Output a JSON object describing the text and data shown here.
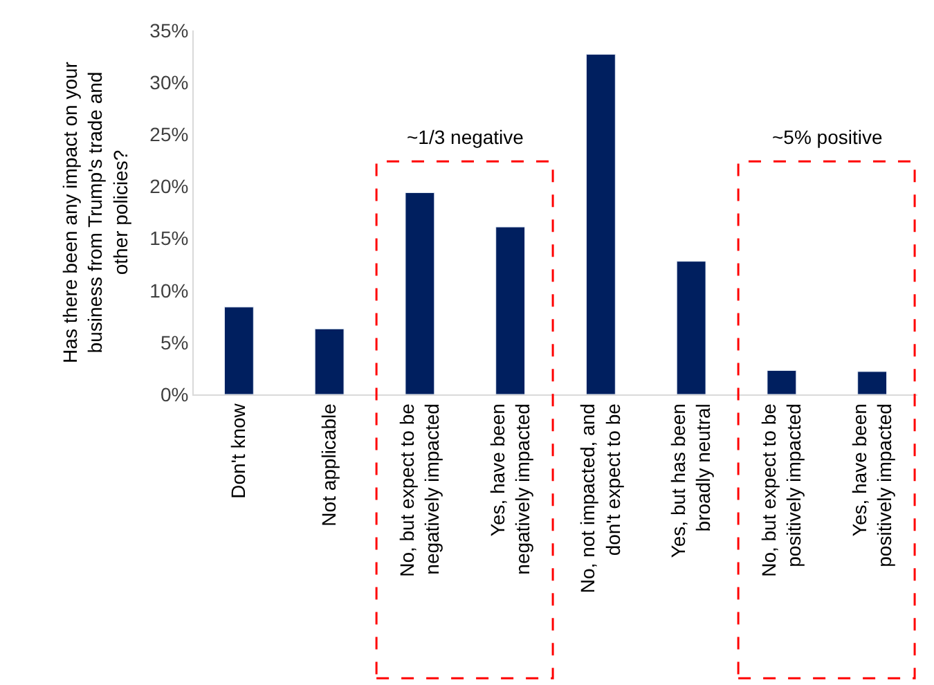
{
  "chart_data": {
    "type": "bar",
    "ylabel": "Has there been any impact on your business from Trump's trade and other policies?",
    "categories": [
      "Don't know",
      "Not applicable",
      "No, but expect to be negatively impacted",
      "Yes, have been negatively impacted",
      "No, not impacted, and don't expect to be",
      "Yes, but has been broadly neutral",
      "No, but expect to be positively impacted",
      "Yes, have been positively impacted"
    ],
    "values": [
      8.4,
      6.3,
      19.4,
      16.1,
      32.7,
      12.8,
      2.3,
      2.2
    ],
    "color": "#001f5f",
    "ylim": [
      0,
      35
    ],
    "yticks": [
      {
        "value": 0,
        "label": "0%"
      },
      {
        "value": 5,
        "label": "5%"
      },
      {
        "value": 10,
        "label": "10%"
      },
      {
        "value": 15,
        "label": "15%"
      },
      {
        "value": 20,
        "label": "20%"
      },
      {
        "value": 25,
        "label": "25%"
      },
      {
        "value": 30,
        "label": "30%"
      },
      {
        "value": 35,
        "label": "35%"
      }
    ],
    "annotations": [
      "~1/3 negative",
      "~5% positive"
    ]
  }
}
